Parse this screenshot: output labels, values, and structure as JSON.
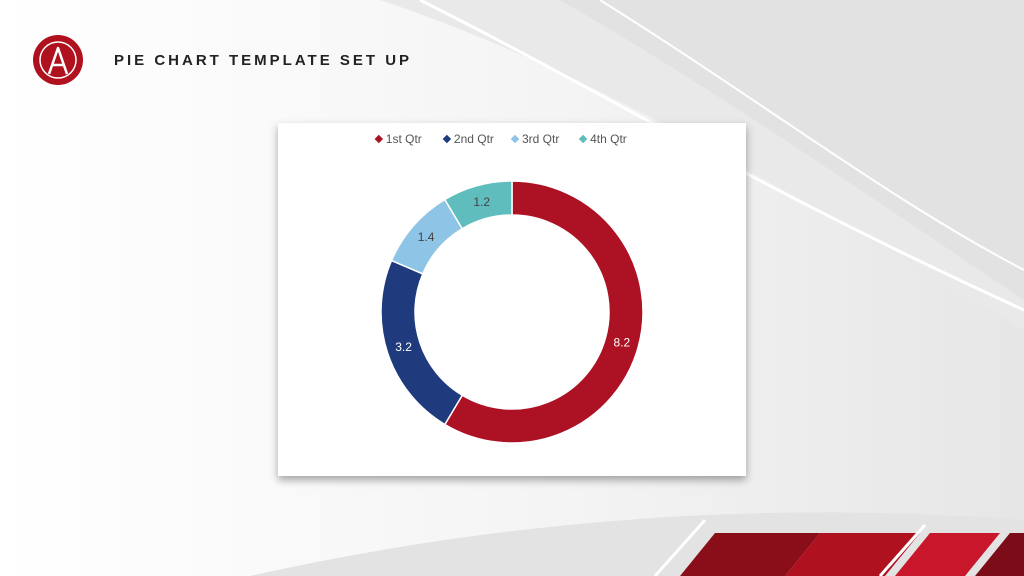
{
  "slide": {
    "title": "PIE CHART TEMPLATE SET UP",
    "logo_icon": "circle-a-logo",
    "accent_color": "#b0111f"
  },
  "chart_data": {
    "type": "pie",
    "variant": "donut",
    "title": "",
    "categories": [
      "1st Qtr",
      "2nd Qtr",
      "3rd Qtr",
      "4th Qtr"
    ],
    "values": [
      8.2,
      3.2,
      1.4,
      1.2
    ],
    "colors": [
      "#ad1124",
      "#1f3a7d",
      "#8ec4e6",
      "#5fbdbd"
    ],
    "label_colors": [
      "#ffffff",
      "#ffffff",
      "#444444",
      "#444444"
    ],
    "legend_position": "top"
  }
}
